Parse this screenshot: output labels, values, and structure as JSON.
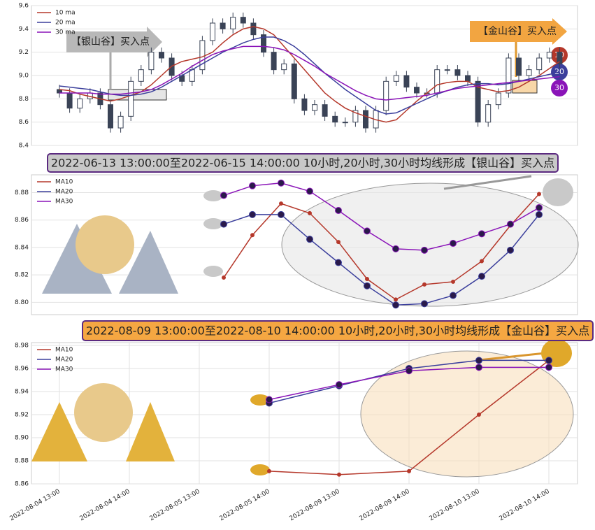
{
  "chart_data": [
    {
      "type": "candlestick",
      "ylim": [
        8.4,
        9.6
      ],
      "yticks": [
        8.4,
        8.6,
        8.8,
        {
          "value": 9.0,
          "label": "9.0"
        },
        9.2,
        9.4,
        9.6
      ],
      "grid": true,
      "up_color": "#ffffff",
      "down_color": "#3a4356",
      "ohlc": {
        "open": [
          8.88,
          8.85,
          8.72,
          8.8,
          8.85,
          8.75,
          8.55,
          8.65,
          8.95,
          9.05,
          9.2,
          9.15,
          9.0,
          8.95,
          9.05,
          9.3,
          9.45,
          9.4,
          9.5,
          9.45,
          9.35,
          9.2,
          9.05,
          9.1,
          8.8,
          8.7,
          8.75,
          8.65,
          8.6,
          8.6,
          8.7,
          8.55,
          8.7,
          8.95,
          9.0,
          8.9,
          8.85,
          8.85,
          9.05,
          9.05,
          9.0,
          8.95,
          8.6,
          8.75,
          8.85,
          9.15,
          9.0,
          9.05,
          9.15,
          9.2
        ],
        "high": [
          8.92,
          8.89,
          8.84,
          8.89,
          8.89,
          8.79,
          8.69,
          8.99,
          9.09,
          9.24,
          9.24,
          9.19,
          9.04,
          9.09,
          9.34,
          9.49,
          9.49,
          9.54,
          9.54,
          9.49,
          9.39,
          9.24,
          9.14,
          9.14,
          8.84,
          8.79,
          8.79,
          8.69,
          8.64,
          8.74,
          8.74,
          8.74,
          8.99,
          9.04,
          9.04,
          8.94,
          8.89,
          9.09,
          9.09,
          9.09,
          9.04,
          8.99,
          8.79,
          8.89,
          9.19,
          9.19,
          9.09,
          9.19,
          9.24,
          9.24
        ],
        "low": [
          8.81,
          8.68,
          8.68,
          8.76,
          8.71,
          8.51,
          8.51,
          8.61,
          8.91,
          9.01,
          9.11,
          8.96,
          8.91,
          8.91,
          9.01,
          9.26,
          9.36,
          9.36,
          9.41,
          9.31,
          9.16,
          9.01,
          9.01,
          8.76,
          8.66,
          8.66,
          8.61,
          8.56,
          8.56,
          8.56,
          8.51,
          8.51,
          8.66,
          8.91,
          8.86,
          8.81,
          8.81,
          8.81,
          9.01,
          8.96,
          8.91,
          8.56,
          8.56,
          8.71,
          8.81,
          8.96,
          8.96,
          9.01,
          9.11,
          9.06
        ],
        "close": [
          8.85,
          8.72,
          8.8,
          8.85,
          8.75,
          8.55,
          8.65,
          8.95,
          9.05,
          9.2,
          9.15,
          9.0,
          8.95,
          9.05,
          9.3,
          9.45,
          9.4,
          9.5,
          9.45,
          9.35,
          9.2,
          9.05,
          9.1,
          8.8,
          8.7,
          8.75,
          8.65,
          8.6,
          8.6,
          8.7,
          8.55,
          8.7,
          8.95,
          9.0,
          8.9,
          8.85,
          8.85,
          9.05,
          9.05,
          9.0,
          8.95,
          8.6,
          8.75,
          8.85,
          9.15,
          9.0,
          9.05,
          9.15,
          9.2,
          9.1
        ]
      },
      "series": [
        {
          "name": "10 ma",
          "color": "#b5382b",
          "values": [
            8.88,
            8.87,
            8.84,
            8.82,
            8.8,
            8.78,
            8.8,
            8.83,
            8.86,
            8.92,
            9.0,
            9.08,
            9.12,
            9.14,
            9.16,
            9.2,
            9.28,
            9.35,
            9.4,
            9.42,
            9.4,
            9.35,
            9.25,
            9.15,
            9.05,
            8.95,
            8.85,
            8.78,
            8.72,
            8.68,
            8.65,
            8.62,
            8.6,
            8.62,
            8.7,
            8.78,
            8.85,
            8.92,
            8.94,
            8.95,
            8.95,
            8.9,
            8.88,
            8.86,
            8.87,
            8.9,
            8.95,
            9.0,
            9.06,
            9.12
          ]
        },
        {
          "name": "20 ma",
          "color": "#3b3f9c",
          "values": [
            8.91,
            8.9,
            8.89,
            8.88,
            8.86,
            8.84,
            8.83,
            8.83,
            8.84,
            8.86,
            8.9,
            8.95,
            9.0,
            9.05,
            9.1,
            9.15,
            9.2,
            9.24,
            9.28,
            9.31,
            9.33,
            9.33,
            9.3,
            9.25,
            9.18,
            9.1,
            9.02,
            8.95,
            8.88,
            8.82,
            8.76,
            8.7,
            8.67,
            8.68,
            8.72,
            8.76,
            8.8,
            8.84,
            8.87,
            8.9,
            8.92,
            8.93,
            8.93,
            8.92,
            8.93,
            8.95,
            8.97,
            8.99,
            9.01,
            9.03
          ]
        },
        {
          "name": "30 ma",
          "color": "#8a14b8",
          "values": [
            8.85,
            8.85,
            8.85,
            8.85,
            8.84,
            8.84,
            8.84,
            8.85,
            8.86,
            8.88,
            8.92,
            8.97,
            9.02,
            9.08,
            9.13,
            9.18,
            9.21,
            9.23,
            9.25,
            9.25,
            9.25,
            9.24,
            9.22,
            9.18,
            9.13,
            9.08,
            9.02,
            8.97,
            8.92,
            8.87,
            8.83,
            8.8,
            8.79,
            8.8,
            8.81,
            8.82,
            8.83,
            8.85,
            8.87,
            8.89,
            8.9,
            8.91,
            8.92,
            8.93,
            8.94,
            8.95,
            8.96,
            8.97,
            8.98,
            8.99
          ]
        }
      ],
      "annotations": [
        "【银山谷】买入点",
        "【金山谷】买入点"
      ],
      "badges": [
        "10",
        "20",
        "30"
      ]
    },
    {
      "type": "line",
      "title": "2022-06-13 13:00:00至2022-06-15 14:00:00 10小时,20小时,30小时均线形成【银山谷】买入点",
      "ylim": [
        8.791,
        8.893
      ],
      "yticks": [
        {
          "value": 8.8,
          "label": "8.80"
        },
        8.82,
        8.84,
        8.86,
        8.88
      ],
      "grid": true,
      "series": [
        {
          "name": "MA10",
          "color": "#b5382b",
          "values": [
            8.818,
            8.849,
            8.872,
            8.865,
            8.844,
            8.817,
            8.802,
            8.813,
            8.815,
            8.83,
            8.856,
            8.879
          ]
        },
        {
          "name": "MA20",
          "color": "#3b3f9c",
          "values": [
            8.857,
            8.864,
            8.864,
            8.846,
            8.829,
            8.812,
            8.798,
            8.799,
            8.805,
            8.819,
            8.838,
            8.864
          ]
        },
        {
          "name": "MA30",
          "color": "#8a14b8",
          "values": [
            8.878,
            8.885,
            8.887,
            8.881,
            8.867,
            8.852,
            8.839,
            8.838,
            8.843,
            8.85,
            8.857,
            8.869
          ]
        }
      ]
    },
    {
      "type": "line",
      "title": "2022-08-09 13:00:00至2022-08-10 14:00:00 10小时,20小时,30小时均线形成【金山谷】买入点",
      "categories": [
        "2022-08-04 13:00",
        "2022-08-04 14:00",
        "2022-08-05 13:00",
        "2022-08-05 14:00",
        "2022-08-09 13:00",
        "2022-08-09 14:00",
        "2022-08-10 13:00",
        "2022-08-10 14:00"
      ],
      "ylim": [
        8.86,
        8.9824
      ],
      "yticks": [
        8.86,
        8.88,
        {
          "value": 8.9,
          "label": "8.90"
        },
        8.92,
        8.94,
        8.96,
        8.98
      ],
      "grid": true,
      "series": [
        {
          "name": "MA10",
          "color": "#b5382b",
          "values": [
            null,
            null,
            null,
            8.871,
            8.868,
            8.871,
            8.92,
            8.967
          ]
        },
        {
          "name": "MA20",
          "color": "#3b3f9c",
          "values": [
            null,
            null,
            null,
            8.93,
            8.945,
            8.96,
            8.967,
            8.967
          ]
        },
        {
          "name": "MA30",
          "color": "#8a14b8",
          "values": [
            null,
            null,
            null,
            8.933,
            8.946,
            8.958,
            8.961,
            8.961
          ]
        }
      ]
    }
  ]
}
